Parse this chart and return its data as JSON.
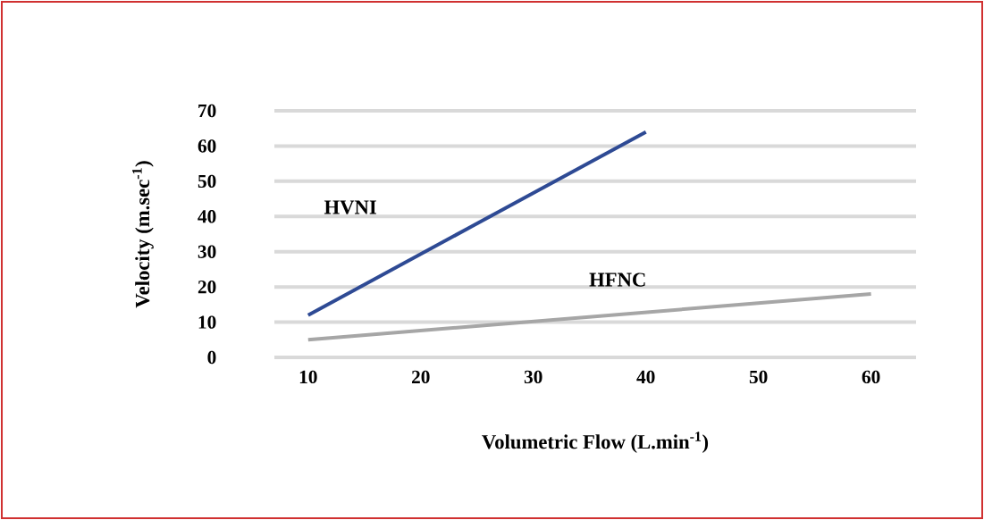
{
  "chart_data": {
    "type": "line",
    "xlabel": "Volumetric Flow (L.min$^{-1}$)",
    "ylabel": "Velocity (m.sec$^{-1}$)",
    "xlim": [
      7,
      64
    ],
    "xticks": [
      10,
      20,
      30,
      40,
      50,
      60
    ],
    "ylim": [
      0,
      70
    ],
    "yticks": [
      0,
      10,
      20,
      30,
      40,
      50,
      60,
      70
    ],
    "grid": "y",
    "legend": false,
    "marker": "none",
    "line_style": "solid",
    "series": [
      {
        "name": "HVNI",
        "color": "#2e4a94",
        "x": [
          10,
          40
        ],
        "values": [
          12,
          64
        ]
      },
      {
        "name": "HFNC",
        "color": "#a6a6a6",
        "x": [
          10,
          60
        ],
        "values": [
          5,
          18
        ]
      }
    ]
  }
}
